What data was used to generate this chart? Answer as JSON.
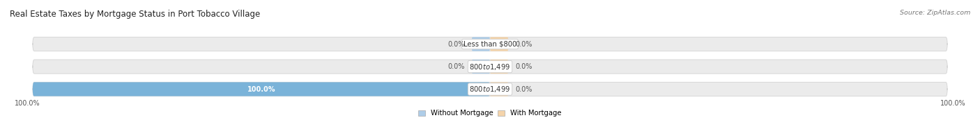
{
  "title": "Real Estate Taxes by Mortgage Status in Port Tobacco Village",
  "source": "Source: ZipAtlas.com",
  "categories": [
    "Less than $800",
    "$800 to $1,499",
    "$800 to $1,499"
  ],
  "without_mortgage": [
    0.0,
    0.0,
    100.0
  ],
  "with_mortgage": [
    0.0,
    0.0,
    0.0
  ],
  "color_without": "#7ab3d9",
  "color_with": "#f5c08a",
  "color_without_light": "#aecde8",
  "color_with_light": "#f5d4aa",
  "bg_bar_color": "#ebebeb",
  "bg_bar_edge": "#d8d8d8",
  "legend_without": "Without Mortgage",
  "legend_with": "With Mortgage",
  "x_left_label": "100.0%",
  "x_right_label": "100.0%",
  "bar_scale": 100.0
}
